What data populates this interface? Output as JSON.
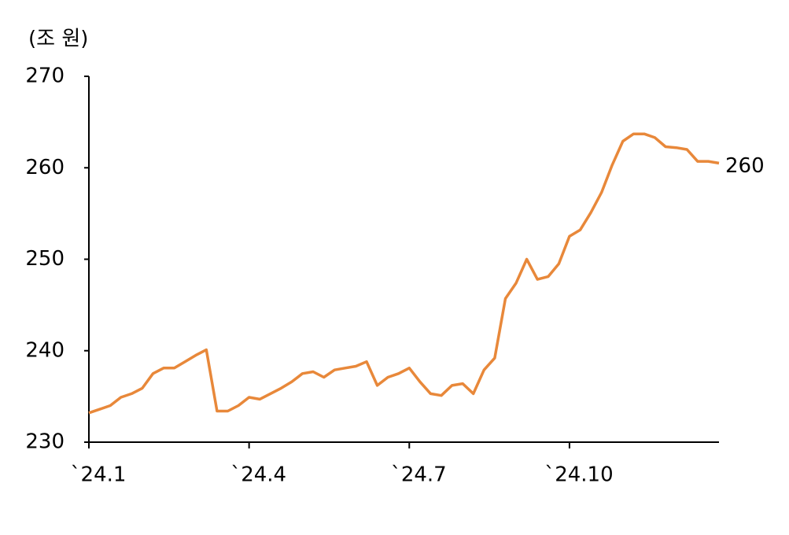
{
  "chart_data": {
    "type": "line",
    "y_label": "(조 원)",
    "end_label": "260",
    "categories": [
      "`24.1",
      null,
      null,
      null,
      null,
      null,
      null,
      null,
      null,
      null,
      null,
      null,
      null,
      null,
      null,
      "`24.4",
      null,
      null,
      null,
      null,
      null,
      null,
      null,
      null,
      null,
      null,
      null,
      null,
      null,
      null,
      "`24.7",
      null,
      null,
      null,
      null,
      null,
      null,
      null,
      null,
      null,
      null,
      null,
      null,
      null,
      null,
      "`24.10",
      null,
      null,
      null,
      null,
      null,
      null,
      null,
      null,
      null,
      null,
      null,
      null,
      null,
      null
    ],
    "series": [
      {
        "color": "#e8883a",
        "values": [
          233.2,
          233.6,
          234.0,
          234.9,
          235.3,
          235.9,
          237.5,
          238.1,
          238.1,
          238.8,
          239.5,
          240.1,
          233.4,
          233.4,
          234.0,
          234.9,
          234.7,
          235.3,
          235.9,
          236.6,
          237.5,
          237.7,
          237.1,
          237.9,
          238.1,
          238.3,
          238.8,
          236.2,
          237.1,
          237.5,
          238.1,
          236.6,
          235.3,
          235.1,
          236.2,
          236.4,
          235.3,
          237.9,
          239.2,
          245.7,
          247.4,
          250.0,
          247.8,
          248.1,
          249.5,
          252.5,
          253.2,
          255.1,
          257.3,
          260.3,
          262.9,
          263.7,
          263.7,
          263.3,
          262.3,
          262.2,
          262.0,
          260.7,
          260.7,
          260.5
        ]
      }
    ],
    "ylim": [
      230,
      270
    ],
    "yticks": [
      230,
      240,
      250,
      260,
      270
    ]
  }
}
